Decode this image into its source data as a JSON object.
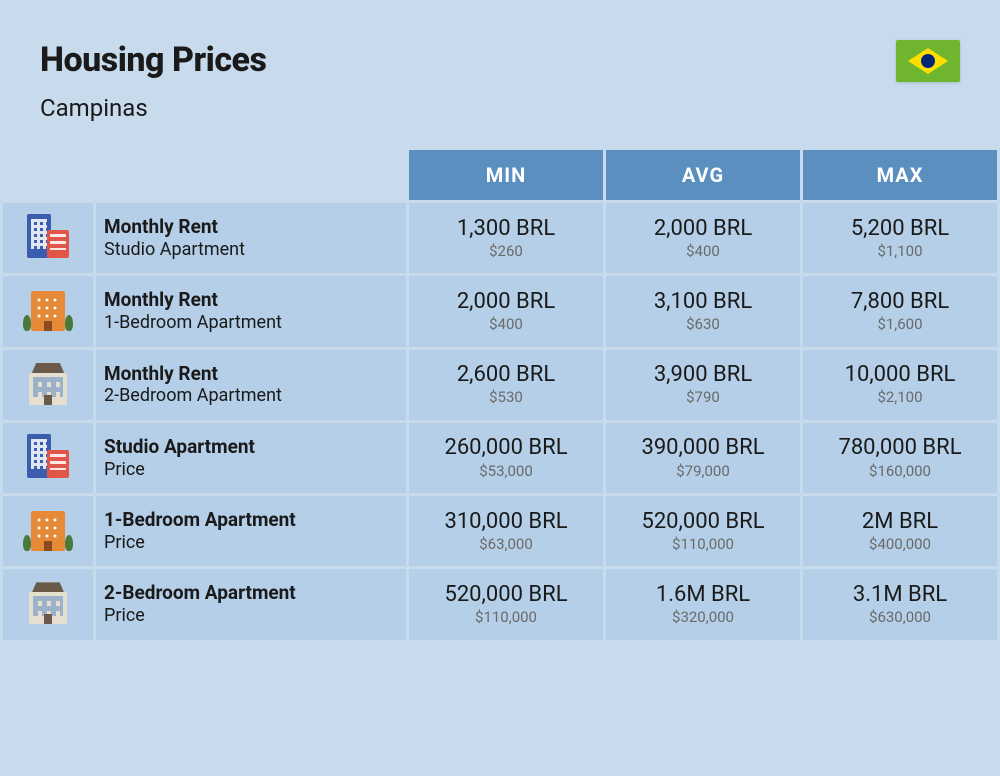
{
  "header": {
    "title": "Housing Prices",
    "subtitle": "Campinas"
  },
  "columns": {
    "min": "MIN",
    "avg": "AVG",
    "max": "MAX"
  },
  "rows": [
    {
      "icon": "buildings",
      "title": "Monthly Rent",
      "sub": "Studio Apartment",
      "min": {
        "v": "1,300 BRL",
        "u": "$260"
      },
      "avg": {
        "v": "2,000 BRL",
        "u": "$400"
      },
      "max": {
        "v": "5,200 BRL",
        "u": "$1,100"
      }
    },
    {
      "icon": "orange",
      "title": "Monthly Rent",
      "sub": "1-Bedroom Apartment",
      "min": {
        "v": "2,000 BRL",
        "u": "$400"
      },
      "avg": {
        "v": "3,100 BRL",
        "u": "$630"
      },
      "max": {
        "v": "7,800 BRL",
        "u": "$1,600"
      }
    },
    {
      "icon": "house",
      "title": "Monthly Rent",
      "sub": "2-Bedroom Apartment",
      "min": {
        "v": "2,600 BRL",
        "u": "$530"
      },
      "avg": {
        "v": "3,900 BRL",
        "u": "$790"
      },
      "max": {
        "v": "10,000 BRL",
        "u": "$2,100"
      }
    },
    {
      "icon": "buildings",
      "title": "Studio Apartment",
      "sub": "Price",
      "min": {
        "v": "260,000 BRL",
        "u": "$53,000"
      },
      "avg": {
        "v": "390,000 BRL",
        "u": "$79,000"
      },
      "max": {
        "v": "780,000 BRL",
        "u": "$160,000"
      }
    },
    {
      "icon": "orange",
      "title": "1-Bedroom Apartment",
      "sub": "Price",
      "min": {
        "v": "310,000 BRL",
        "u": "$63,000"
      },
      "avg": {
        "v": "520,000 BRL",
        "u": "$110,000"
      },
      "max": {
        "v": "2M BRL",
        "u": "$400,000"
      }
    },
    {
      "icon": "house",
      "title": "2-Bedroom Apartment",
      "sub": "Price",
      "min": {
        "v": "520,000 BRL",
        "u": "$110,000"
      },
      "avg": {
        "v": "1.6M BRL",
        "u": "$320,000"
      },
      "max": {
        "v": "3.1M BRL",
        "u": "$630,000"
      }
    }
  ],
  "colors": {
    "page_bg": "#c8dbed",
    "header_cell_bg": "#5a8fbf",
    "data_cell_bg": "#b4cfe7",
    "text_main": "#1a1a1a",
    "text_sub": "#6a6a6a"
  }
}
